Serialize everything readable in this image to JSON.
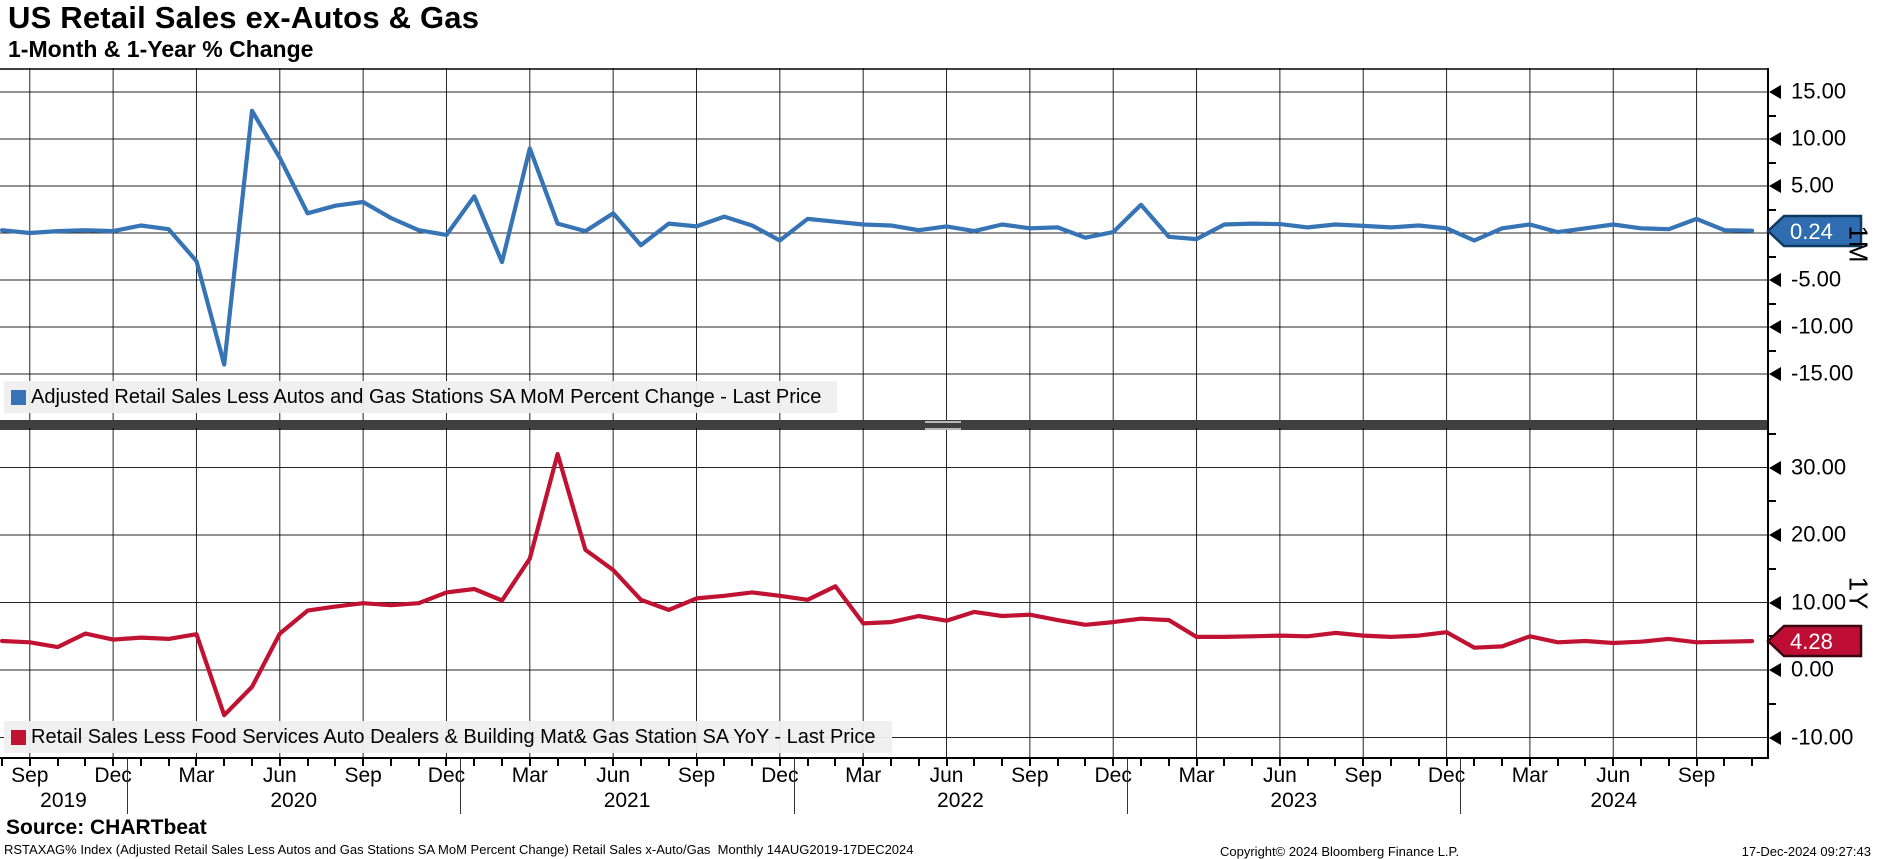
{
  "header": {
    "title": "US Retail Sales ex-Autos & Gas",
    "subtitle": "1-Month & 1-Year % Change"
  },
  "colors": {
    "background": "#FFFFFF",
    "grid": "#000000",
    "mom_blue": "#3674B5",
    "mom_tag_fill": "#2F6CB0",
    "mom_tag_border": "#0E3A5F",
    "yoy_red": "#C01232",
    "yoy_tag_fill": "#BE0E35",
    "yoy_tag_border": "#3A040F",
    "legend_bg": "#EFEFEF",
    "divider": "#3F3F3F"
  },
  "x_axis": {
    "month_ticks": [
      "Sep",
      "Dec",
      "Mar",
      "Jun",
      "Sep",
      "Dec",
      "Mar",
      "Jun",
      "Sep",
      "Dec",
      "Mar",
      "Jun",
      "Sep",
      "Dec",
      "Mar",
      "Jun",
      "Sep",
      "Dec",
      "Mar",
      "Jun",
      "Sep"
    ],
    "year_labels": [
      "2019",
      "2020",
      "2021",
      "2022",
      "2023",
      "2024"
    ]
  },
  "chart_data": [
    {
      "id": "mom",
      "type": "line",
      "name": "1-Month % Change",
      "legend": "Adjusted Retail Sales Less Autos and Gas Stations SA MoM Percent Change - Last Price",
      "axis_unit": "1M",
      "last_price": "0.24",
      "color": "#3674B5",
      "tag_fill": "#2F6CB0",
      "tag_border": "#0E3A5F",
      "ylim": [
        -20,
        17.5
      ],
      "grid_values": [
        15,
        10,
        5,
        0,
        -5,
        -10,
        -15
      ],
      "y_ticks_major": [
        {
          "value": 15,
          "label": "15.00"
        },
        {
          "value": 10,
          "label": "10.00"
        },
        {
          "value": 5,
          "label": "5.00"
        },
        {
          "value": -5,
          "label": "-5.00"
        },
        {
          "value": -10,
          "label": "-10.00"
        },
        {
          "value": -15,
          "label": "-15.00"
        }
      ],
      "y_ticks_minor": [
        12.5,
        7.5,
        2.5,
        -2.5,
        -7.5,
        -12.5
      ],
      "x": [
        "2019-08",
        "2019-09",
        "2019-10",
        "2019-11",
        "2019-12",
        "2020-01",
        "2020-02",
        "2020-03",
        "2020-04",
        "2020-05",
        "2020-06",
        "2020-07",
        "2020-08",
        "2020-09",
        "2020-10",
        "2020-11",
        "2020-12",
        "2021-01",
        "2021-02",
        "2021-03",
        "2021-04",
        "2021-05",
        "2021-06",
        "2021-07",
        "2021-08",
        "2021-09",
        "2021-10",
        "2021-11",
        "2021-12",
        "2022-01",
        "2022-02",
        "2022-03",
        "2022-04",
        "2022-05",
        "2022-06",
        "2022-07",
        "2022-08",
        "2022-09",
        "2022-10",
        "2022-11",
        "2022-12",
        "2023-01",
        "2023-02",
        "2023-03",
        "2023-04",
        "2023-05",
        "2023-06",
        "2023-07",
        "2023-08",
        "2023-09",
        "2023-10",
        "2023-11",
        "2023-12",
        "2024-01",
        "2024-02",
        "2024-03",
        "2024-04",
        "2024-05",
        "2024-06",
        "2024-07",
        "2024-08",
        "2024-09",
        "2024-10",
        "2024-11"
      ],
      "values": [
        0.3,
        0.0,
        0.2,
        0.3,
        0.2,
        0.8,
        0.4,
        -3.0,
        -14.0,
        13.0,
        8.0,
        2.1,
        2.9,
        3.3,
        1.6,
        0.3,
        -0.2,
        3.9,
        -3.1,
        9.0,
        1.0,
        0.2,
        2.1,
        -1.3,
        1.0,
        0.7,
        1.75,
        0.8,
        -0.8,
        1.5,
        1.2,
        0.9,
        0.8,
        0.3,
        0.7,
        0.2,
        0.9,
        0.5,
        0.6,
        -0.5,
        0.1,
        3.0,
        -0.4,
        -0.65,
        0.9,
        1.0,
        0.95,
        0.6,
        0.9,
        0.75,
        0.6,
        0.8,
        0.5,
        -0.8,
        0.5,
        0.9,
        0.1,
        0.5,
        0.9,
        0.5,
        0.4,
        1.5,
        0.3,
        0.24
      ]
    },
    {
      "id": "yoy",
      "type": "line",
      "name": "1-Year % Change",
      "legend": "Retail Sales Less Food Services Auto Dealers & Building Mat& Gas Station SA YoY - Last Price",
      "axis_unit": "1Y",
      "last_price": "4.28",
      "color": "#C01232",
      "tag_fill": "#BE0E35",
      "tag_border": "#3A040F",
      "ylim": [
        -13,
        36
      ],
      "grid_values": [
        30,
        20,
        10,
        0,
        -10
      ],
      "y_ticks_major": [
        {
          "value": 30,
          "label": "30.00"
        },
        {
          "value": 20,
          "label": "20.00"
        },
        {
          "value": 10,
          "label": "10.00"
        },
        {
          "value": 0,
          "label": "0.00"
        },
        {
          "value": -10,
          "label": "-10.00"
        }
      ],
      "y_ticks_minor": [
        35,
        25,
        15,
        5,
        -5
      ],
      "x": [
        "2019-08",
        "2019-09",
        "2019-10",
        "2019-11",
        "2019-12",
        "2020-01",
        "2020-02",
        "2020-03",
        "2020-04",
        "2020-05",
        "2020-06",
        "2020-07",
        "2020-08",
        "2020-09",
        "2020-10",
        "2020-11",
        "2020-12",
        "2021-01",
        "2021-02",
        "2021-03",
        "2021-04",
        "2021-05",
        "2021-06",
        "2021-07",
        "2021-08",
        "2021-09",
        "2021-10",
        "2021-11",
        "2021-12",
        "2022-01",
        "2022-02",
        "2022-03",
        "2022-04",
        "2022-05",
        "2022-06",
        "2022-07",
        "2022-08",
        "2022-09",
        "2022-10",
        "2022-11",
        "2022-12",
        "2023-01",
        "2023-02",
        "2023-03",
        "2023-04",
        "2023-05",
        "2023-06",
        "2023-07",
        "2023-08",
        "2023-09",
        "2023-10",
        "2023-11",
        "2023-12",
        "2024-01",
        "2024-02",
        "2024-03",
        "2024-04",
        "2024-05",
        "2024-06",
        "2024-07",
        "2024-08",
        "2024-09",
        "2024-10",
        "2024-11"
      ],
      "values": [
        4.3,
        4.1,
        3.4,
        5.4,
        4.5,
        4.8,
        4.6,
        5.3,
        -6.7,
        -2.5,
        5.4,
        8.8,
        9.4,
        9.9,
        9.6,
        9.9,
        11.5,
        12.0,
        10.3,
        16.5,
        32.0,
        17.8,
        14.8,
        10.4,
        8.9,
        10.6,
        11.0,
        11.5,
        11.0,
        10.4,
        12.4,
        6.9,
        7.1,
        8.0,
        7.3,
        8.6,
        8.0,
        8.2,
        7.4,
        6.7,
        7.1,
        7.6,
        7.4,
        4.9,
        4.9,
        5.0,
        5.1,
        5.0,
        5.5,
        5.1,
        4.9,
        5.1,
        5.6,
        3.3,
        3.5,
        5.0,
        4.1,
        4.3,
        4.0,
        4.2,
        4.6,
        4.1,
        4.2,
        4.28
      ]
    }
  ],
  "footer": {
    "source": "Source: CHARTbeat",
    "description": "RSTAXAG% Index (Adjusted Retail Sales Less Autos and Gas Stations SA MoM Percent Change) Retail Sales x-Auto/Gas  Monthly 14AUG2019-17DEC2024",
    "copyright": "Copyright© 2024 Bloomberg Finance L.P.",
    "datetime": "17-Dec-2024 09:27:43"
  }
}
